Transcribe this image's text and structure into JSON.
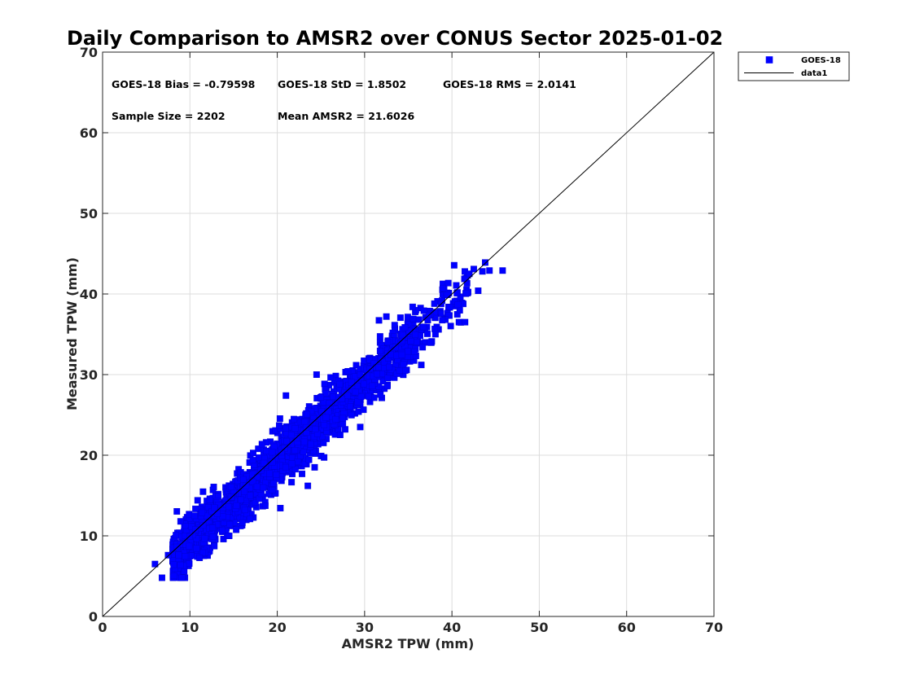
{
  "chart_data": {
    "type": "scatter",
    "title": "Daily Comparison to AMSR2 over CONUS Sector 2025-01-02",
    "xlabel": "AMSR2 TPW (mm)",
    "ylabel": "Measured TPW (mm)",
    "xlim": [
      0,
      70
    ],
    "ylim": [
      0,
      70
    ],
    "xticks": [
      "0",
      "10",
      "20",
      "30",
      "40",
      "50",
      "60",
      "70"
    ],
    "yticks": [
      "0",
      "10",
      "20",
      "30",
      "40",
      "50",
      "60",
      "70"
    ],
    "grid": true,
    "legend_position": "outside-top-right",
    "stats": [
      "GOES-18 Bias = -0.79598",
      "GOES-18 StD = 1.8502",
      "GOES-18 RMS = 2.0141",
      "Sample Size = 2202",
      "Mean AMSR2 = 21.6026"
    ],
    "series": [
      {
        "name": "GOES-18",
        "kind": "scatter",
        "marker": "square",
        "color": "#0000ff",
        "sample_size": 2202,
        "bias": -0.79598,
        "std": 1.8502,
        "x_range": [
          6,
          46
        ]
      },
      {
        "name": "data1",
        "kind": "line",
        "color": "#000000",
        "x": [
          0,
          70
        ],
        "y": [
          0,
          70
        ]
      }
    ],
    "outlier_points": [
      {
        "x": 6.0,
        "y": 6.5
      },
      {
        "x": 6.8,
        "y": 4.8
      },
      {
        "x": 7.5,
        "y": 7.6
      },
      {
        "x": 12.8,
        "y": 13.5
      },
      {
        "x": 14.5,
        "y": 10.0
      },
      {
        "x": 21.0,
        "y": 27.4
      },
      {
        "x": 23.5,
        "y": 16.2
      },
      {
        "x": 24.5,
        "y": 30.0
      },
      {
        "x": 29.5,
        "y": 23.5
      },
      {
        "x": 32.5,
        "y": 37.2
      },
      {
        "x": 34.0,
        "y": 30.5
      },
      {
        "x": 35.5,
        "y": 38.4
      },
      {
        "x": 36.5,
        "y": 31.2
      },
      {
        "x": 37.5,
        "y": 34.0
      },
      {
        "x": 38.0,
        "y": 38.8
      },
      {
        "x": 39.5,
        "y": 39.9
      },
      {
        "x": 40.8,
        "y": 36.5
      },
      {
        "x": 41.5,
        "y": 36.5
      },
      {
        "x": 41.6,
        "y": 40.1
      },
      {
        "x": 42.0,
        "y": 42.5
      },
      {
        "x": 42.5,
        "y": 43.1
      },
      {
        "x": 43.0,
        "y": 40.4
      },
      {
        "x": 43.5,
        "y": 42.8
      },
      {
        "x": 43.8,
        "y": 43.9
      },
      {
        "x": 44.3,
        "y": 42.9
      },
      {
        "x": 45.8,
        "y": 42.9
      }
    ]
  }
}
